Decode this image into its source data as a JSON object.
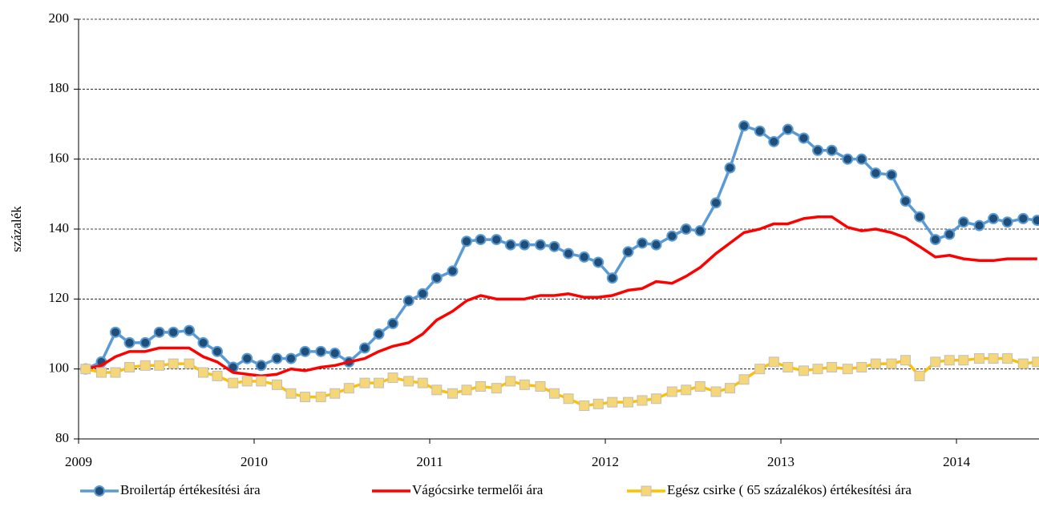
{
  "chart_data": {
    "type": "line",
    "ylabel": "százalék",
    "x": [
      2009.04,
      2009.13,
      2009.21,
      2009.29,
      2009.38,
      2009.46,
      2009.54,
      2009.63,
      2009.71,
      2009.79,
      2009.88,
      2009.96,
      2010.04,
      2010.13,
      2010.21,
      2010.29,
      2010.38,
      2010.46,
      2010.54,
      2010.63,
      2010.71,
      2010.79,
      2010.88,
      2010.96,
      2011.04,
      2011.13,
      2011.21,
      2011.29,
      2011.38,
      2011.46,
      2011.54,
      2011.63,
      2011.71,
      2011.79,
      2011.88,
      2011.96,
      2012.04,
      2012.13,
      2012.21,
      2012.29,
      2012.38,
      2012.46,
      2012.54,
      2012.63,
      2012.71,
      2012.79,
      2012.88,
      2012.96,
      2013.04,
      2013.13,
      2013.21,
      2013.29,
      2013.38,
      2013.46,
      2013.54,
      2013.63,
      2013.71,
      2013.79,
      2013.88,
      2013.96,
      2014.04,
      2014.13,
      2014.21,
      2014.29,
      2014.38,
      2014.46
    ],
    "series": [
      {
        "name": "Broilertáp értékesítési ára",
        "color": "#5b9bd5",
        "marker": "circle",
        "marker_color": "#1f4e79",
        "values": [
          100,
          102,
          110.5,
          107.5,
          107.5,
          110.5,
          110.5,
          111,
          107.5,
          105,
          100.5,
          103,
          101,
          103,
          103,
          105,
          105,
          104.5,
          102,
          106,
          110,
          113,
          119.5,
          121.5,
          126,
          128,
          136.5,
          137,
          137,
          135.5,
          135.5,
          135.5,
          135,
          133,
          132,
          130.5,
          126,
          133.5,
          136,
          135.5,
          138,
          140,
          139.5,
          147.5,
          157.5,
          169.5,
          168,
          165,
          168.5,
          166,
          162.5,
          162.5,
          160,
          160,
          156,
          155.5,
          148,
          143.5,
          137,
          138.5,
          142,
          141,
          143,
          142,
          143,
          142.5
        ]
      },
      {
        "name": "Vágócsirke termelői ára",
        "color": "#ff0000",
        "marker": "none",
        "values": [
          100,
          101,
          103.5,
          105,
          105,
          106,
          106,
          106,
          103.5,
          102,
          99,
          98.5,
          98,
          98.5,
          100,
          99.5,
          100.5,
          101,
          102,
          103,
          105,
          106.5,
          107.5,
          110,
          114,
          116.5,
          119.5,
          121,
          120,
          120,
          120,
          121,
          121,
          121.5,
          120.5,
          120.5,
          121,
          122.5,
          123,
          125,
          124.5,
          126.5,
          129,
          133,
          136,
          139,
          140,
          141.5,
          141.5,
          143,
          143.5,
          143.5,
          140.5,
          139.5,
          140,
          139,
          137.5,
          135,
          132,
          132.5,
          131.5,
          131,
          131,
          131.5,
          131.5,
          131.5
        ]
      },
      {
        "name": "Egész csirke ( 65 százalékos) értékesítési ára",
        "color": "#ffc000",
        "marker": "square",
        "marker_color": "#f5d77a",
        "values": [
          100,
          99,
          99,
          100.5,
          101,
          101,
          101.5,
          101.5,
          99,
          98,
          96,
          96.5,
          96.5,
          95.5,
          93,
          92,
          92,
          93,
          94.5,
          96,
          96,
          97.5,
          96.5,
          96,
          94,
          93,
          94,
          95,
          94.5,
          96.5,
          95.5,
          95,
          93,
          91.5,
          89.5,
          90,
          90.5,
          90.5,
          91,
          91.5,
          93.5,
          94,
          95,
          93.5,
          94.5,
          97,
          100,
          102,
          100.5,
          99.5,
          100,
          100.5,
          100,
          100.5,
          101.5,
          101.5,
          102.5,
          98,
          102,
          102.5,
          102.5,
          103,
          103,
          103,
          101.5,
          102
        ]
      }
    ],
    "xlim": [
      2009,
      2014.47
    ],
    "xticks": [
      2009,
      2010,
      2011,
      2012,
      2013,
      2014
    ],
    "ylim": [
      80,
      200
    ],
    "yticks": [
      80,
      100,
      120,
      140,
      160,
      180,
      200
    ],
    "grid": true,
    "legend": "bottom"
  }
}
